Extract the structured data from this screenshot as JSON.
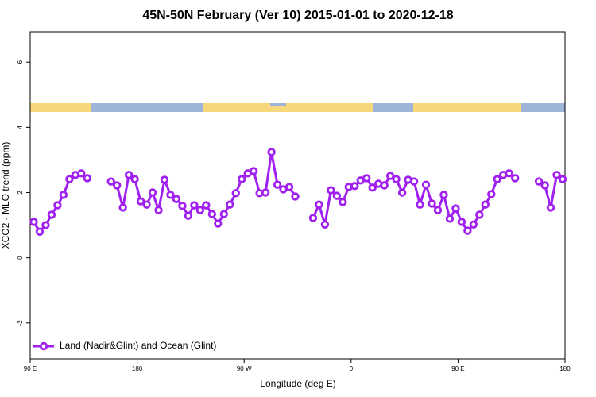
{
  "chart_data": {
    "type": "line",
    "title": "45N-50N February (Ver 10)   2015-01-01 to 2020-12-18",
    "x_label": "Longitude (deg E)",
    "y_label": "XCO2 - MLO trend (ppm)",
    "x": [
      93,
      98,
      103,
      108,
      113,
      118,
      123,
      128,
      133,
      138,
      143,
      148,
      153,
      158,
      163,
      168,
      173,
      178,
      183,
      188,
      193,
      198,
      203,
      208,
      213,
      218,
      223,
      228,
      233,
      238,
      243,
      248,
      253,
      258,
      263,
      268,
      273,
      278,
      283,
      288,
      293,
      298,
      303,
      308,
      313,
      318,
      323,
      328,
      333,
      338,
      343,
      348,
      353,
      358,
      363,
      368,
      373,
      378,
      383,
      388,
      393,
      398,
      403,
      408,
      413,
      418,
      423,
      428,
      433,
      438,
      443,
      448,
      453,
      458,
      463,
      468,
      473,
      478,
      483,
      488,
      493,
      498,
      503,
      508,
      513,
      518,
      523,
      528,
      533,
      538
    ],
    "series": [
      {
        "name": "Land (Nadir&Glint) and Ocean (Glint)",
        "color": "#a020f0",
        "values": [
          1.1,
          0.8,
          1.0,
          1.32,
          1.61,
          1.93,
          2.41,
          2.54,
          2.59,
          2.44,
          null,
          null,
          null,
          2.34,
          2.22,
          1.54,
          2.54,
          2.41,
          1.73,
          1.63,
          2.0,
          1.46,
          2.39,
          1.93,
          1.8,
          1.59,
          1.29,
          1.61,
          1.46,
          1.61,
          1.34,
          1.05,
          1.34,
          1.63,
          1.98,
          2.41,
          2.59,
          2.66,
          1.98,
          2.0,
          3.24,
          2.24,
          2.1,
          2.17,
          1.88,
          null,
          null,
          1.22,
          1.63,
          1.02,
          2.07,
          1.9,
          1.71,
          2.17,
          2.2,
          2.37,
          2.44,
          2.15,
          2.27,
          2.22,
          2.51,
          2.41,
          2.0,
          2.39,
          2.34,
          1.63,
          2.24,
          1.66,
          1.46,
          1.93,
          1.2,
          1.51,
          1.1,
          0.83,
          1.02,
          1.32,
          1.63,
          1.95,
          2.41,
          2.54,
          2.59,
          2.44,
          null,
          null,
          null,
          2.34,
          2.22,
          1.54,
          2.54,
          2.41
        ]
      }
    ],
    "xlim": [
      90,
      540
    ],
    "xticks": [
      {
        "value": 90,
        "label": "90 E"
      },
      180,
      {
        "value": 270,
        "label": "90 W"
      },
      {
        "value": 360,
        "label": "0"
      },
      {
        "value": 450,
        "label": "90 E"
      },
      {
        "value": 540,
        "label": "180"
      }
    ],
    "ylim": [
      -3.1,
      6.93
    ],
    "yticks": [
      -2,
      0,
      2,
      4,
      6
    ],
    "legend": "bottomleft"
  }
}
